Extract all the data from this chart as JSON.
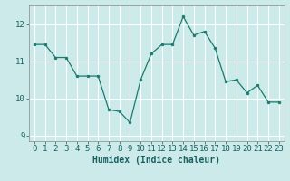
{
  "x": [
    0,
    1,
    2,
    3,
    4,
    5,
    6,
    7,
    8,
    9,
    10,
    11,
    12,
    13,
    14,
    15,
    16,
    17,
    18,
    19,
    20,
    21,
    22,
    23
  ],
  "y": [
    11.45,
    11.45,
    11.1,
    11.1,
    10.6,
    10.6,
    10.6,
    9.7,
    9.65,
    9.35,
    10.5,
    11.2,
    11.45,
    11.45,
    12.2,
    11.7,
    11.8,
    11.35,
    10.45,
    10.5,
    10.15,
    10.35,
    9.9,
    9.9
  ],
  "line_color": "#1a7a6e",
  "marker_color": "#1a7a6e",
  "bg_color": "#cceaea",
  "grid_color": "#ffffff",
  "xlabel": "Humidex (Indice chaleur)",
  "xlabel_fontsize": 7,
  "tick_fontsize": 6.5,
  "ylim": [
    8.85,
    12.5
  ],
  "yticks": [
    9,
    10,
    11,
    12
  ],
  "xticks": [
    0,
    1,
    2,
    3,
    4,
    5,
    6,
    7,
    8,
    9,
    10,
    11,
    12,
    13,
    14,
    15,
    16,
    17,
    18,
    19,
    20,
    21,
    22,
    23
  ]
}
